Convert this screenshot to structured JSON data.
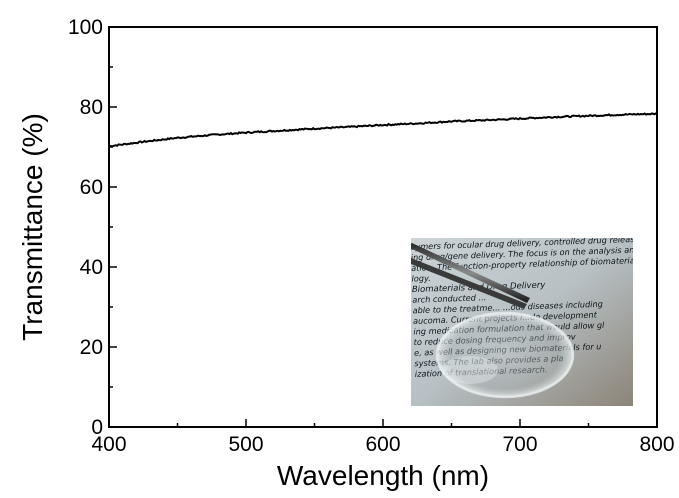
{
  "chart_data": {
    "type": "line",
    "xlabel": "Wavelength (nm)",
    "ylabel": "Transmittance (%)",
    "xlim": [
      400,
      800
    ],
    "ylim": [
      0,
      100
    ],
    "x_ticks": [
      400,
      500,
      600,
      700,
      800
    ],
    "y_ticks": [
      0,
      20,
      40,
      60,
      80,
      100
    ],
    "x_tick_labels": [
      "400",
      "500",
      "600",
      "700",
      "800"
    ],
    "y_tick_labels": [
      "0",
      "20",
      "40",
      "60",
      "80",
      "100"
    ],
    "grid": false,
    "legend": "none",
    "series": [
      {
        "color": "#000000",
        "x": [
          400,
          425,
          450,
          475,
          500,
          525,
          550,
          575,
          600,
          625,
          650,
          675,
          700,
          725,
          750,
          775,
          800
        ],
        "y": [
          70.2,
          71.3,
          72.3,
          73.0,
          73.6,
          74.1,
          74.6,
          75.0,
          75.5,
          75.9,
          76.4,
          76.7,
          77.1,
          77.5,
          77.8,
          78.1,
          78.3
        ]
      }
    ]
  },
  "inset": {
    "description_icon": "photo-of-transparent-film-held-by-tweezers",
    "text_lines": [
      "oymers for ocular drug delivery, controlled drug release, and tissu",
      "ing drug/gene delivery. The focus is on the analysis and understandin",
      "ation. The function-property relationship of biomaterials",
      "logy.",
      "Biomaterials and Drug Delivery",
      "arch conducted ...",
      "able to the treatme... ...ous diseases including",
      "aucoma. Current projects i...de development",
      "ing medication formulation that would allow gl",
      "to reduce dosing frequency and improv",
      "e, as well as designing new biomaterials for u",
      "systems. The lab also provides a pla",
      "ization of translational research."
    ]
  }
}
